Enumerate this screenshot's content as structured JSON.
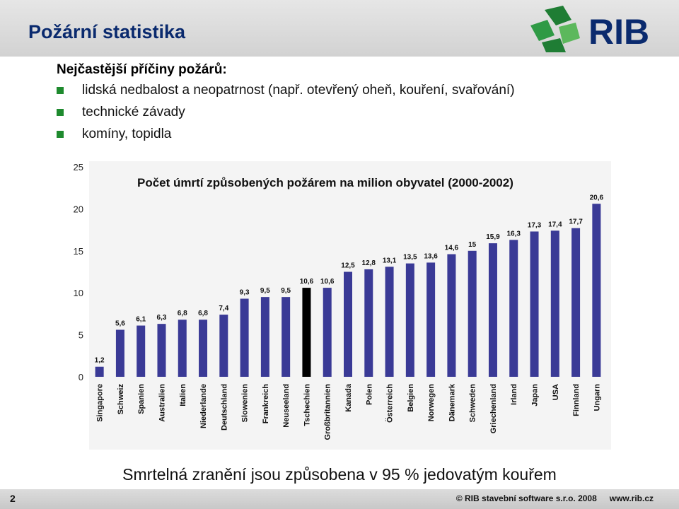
{
  "header": {
    "title": "Požární statistika",
    "logo_text": "RIB"
  },
  "content": {
    "subtitle": "Nejčastější příčiny požárů:",
    "bullets": [
      "lidská nedbalost a neopatrnost (např. otevřený oheň, kouření, svařování)",
      "technické závady",
      "komíny, topidla"
    ],
    "bullet_color": "#1e8a2e"
  },
  "chart_data": {
    "type": "bar",
    "title": "Počet úmrtí způsobených požárem na milion obyvatel (2000-2002)",
    "xlabel": "",
    "ylabel": "",
    "ylim": [
      0,
      25
    ],
    "yticks": [
      0,
      5,
      10,
      15,
      20,
      25
    ],
    "grid": false,
    "bar_color": "#3a3a96",
    "highlight_color": "#000000",
    "highlight_category": "Tschechien",
    "categories": [
      "Singapore",
      "Schweiz",
      "Spanien",
      "Australien",
      "Italien",
      "Niederlande",
      "Deutschland",
      "Slowenien",
      "Frankreich",
      "Neuseeland",
      "Tschechien",
      "Großbritannien",
      "Kanada",
      "Polen",
      "Österreich",
      "Belgien",
      "Norwegen",
      "Dänemark",
      "Schweden",
      "Griechenland",
      "Irland",
      "Japan",
      "USA",
      "Finnland",
      "Ungarn"
    ],
    "values": [
      1.2,
      5.6,
      6.1,
      6.3,
      6.8,
      6.8,
      7.4,
      9.3,
      9.5,
      9.5,
      10.6,
      10.6,
      12.5,
      12.8,
      13.1,
      13.5,
      13.6,
      14.6,
      15,
      15.9,
      16.3,
      17.3,
      17.4,
      17.7,
      20.6
    ],
    "value_labels": [
      "1,2",
      "5,6",
      "6,1",
      "6,3",
      "6,8",
      "6,8",
      "7,4",
      "9,3",
      "9,5",
      "9,5",
      "10,6",
      "10,6",
      "12,5",
      "12,8",
      "13,1",
      "13,5",
      "13,6",
      "14,6",
      "15",
      "15,9",
      "16,3",
      "17,3",
      "17,4",
      "17,7",
      "20,6"
    ]
  },
  "footer": {
    "note": "Smrtelná zranění jsou způsobena v 95 % jedovatým kouřem",
    "page_number": "2",
    "copyright": "© RIB stavební software s.r.o. 2008",
    "website": "www.rib.cz"
  }
}
